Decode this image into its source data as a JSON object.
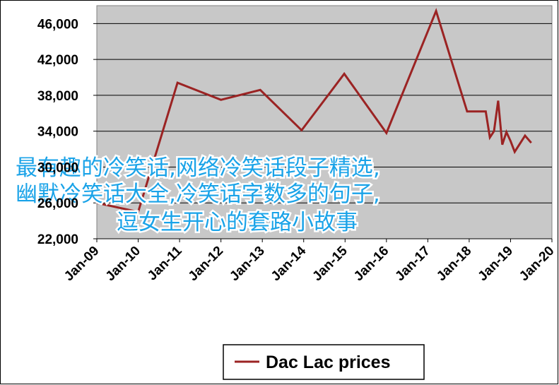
{
  "chart_data": {
    "type": "line",
    "series": [
      {
        "name": "Dac Lac prices",
        "color": "#9b2323",
        "x": [
          2009.0,
          2010.0,
          2010.95,
          2012.0,
          2012.95,
          2013.95,
          2014.98,
          2016.0,
          2017.2,
          2017.95,
          2018.4,
          2018.5,
          2018.6,
          2018.7,
          2018.8,
          2018.9,
          2019.0,
          2019.1,
          2019.35,
          2019.5
        ],
        "values": [
          26000,
          25000,
          39400,
          37500,
          38600,
          34100,
          40400,
          33800,
          47400,
          36200,
          36200,
          33300,
          34000,
          37400,
          32500,
          33900,
          32900,
          31700,
          33500,
          32700
        ]
      }
    ],
    "xlim": [
      2009,
      2020
    ],
    "xticks": [
      {
        "value": 2009,
        "label": "Jan-09"
      },
      {
        "value": 2010,
        "label": "Jan-10"
      },
      {
        "value": 2011,
        "label": "Jan-11"
      },
      {
        "value": 2012,
        "label": "Jan-12"
      },
      {
        "value": 2013,
        "label": "Jan-13"
      },
      {
        "value": 2014,
        "label": "Jan-14"
      },
      {
        "value": 2015,
        "label": "Jan-15"
      },
      {
        "value": 2016,
        "label": "Jan-16"
      },
      {
        "value": 2017,
        "label": "Jan-17"
      },
      {
        "value": 2018,
        "label": "Jan-18"
      },
      {
        "value": 2019,
        "label": "Jan-19"
      },
      {
        "value": 2020,
        "label": "Jan-20"
      }
    ],
    "ylim": [
      22000,
      48000
    ],
    "yticks": [
      {
        "value": 22000,
        "label": "22,000"
      },
      {
        "value": 26000,
        "label": "26,000"
      },
      {
        "value": 30000,
        "label": "30,000"
      },
      {
        "value": 34000,
        "label": "34,000"
      },
      {
        "value": 38000,
        "label": "38,000"
      },
      {
        "value": 42000,
        "label": "42,000"
      },
      {
        "value": 46000,
        "label": "46,000"
      }
    ],
    "grid": true,
    "legend": "bottom",
    "annotations": [
      "最有趣的冷笑话,网络冷笑话段子精选,",
      "幽默冷笑话大全,冷笑话字数多的句子,",
      "逗女生开心的套路小故事"
    ]
  }
}
